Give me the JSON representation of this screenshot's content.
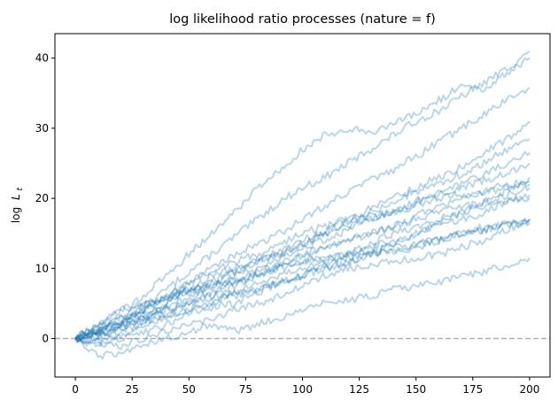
{
  "chart_data": {
    "type": "line",
    "title": "log likelihood ratio processes (nature = f)",
    "xlabel": "",
    "ylabel_main": "log",
    "ylabel_math": "L",
    "ylabel_subscript": "t",
    "xlim": [
      -9,
      209
    ],
    "ylim": [
      -5.5,
      43.5
    ],
    "xticks": [
      0,
      25,
      50,
      75,
      100,
      125,
      150,
      175,
      200
    ],
    "yticks": [
      0,
      10,
      20,
      30,
      40
    ],
    "reference_line": {
      "y": 0,
      "style": "dashed",
      "color": "#b0b0b0"
    },
    "line_color": "#1f77b4",
    "line_alpha": 0.3,
    "series": [
      {
        "name": "path-1",
        "x": [
          0,
          10,
          20,
          30,
          40,
          50,
          60,
          70,
          80,
          90,
          100,
          110,
          120,
          130,
          140,
          150,
          160,
          170,
          180,
          190,
          200
        ],
        "values": [
          0,
          1.2,
          2.5,
          4.5,
          7,
          9.5,
          12,
          14.5,
          17,
          19.5,
          21.5,
          23,
          25,
          27,
          29,
          31,
          32.5,
          34.5,
          36.5,
          38.5,
          41
        ]
      },
      {
        "name": "path-2",
        "x": [
          0,
          10,
          20,
          30,
          40,
          50,
          60,
          70,
          80,
          90,
          100,
          110,
          120,
          130,
          140,
          150,
          160,
          170,
          180,
          190,
          200
        ],
        "values": [
          0,
          2,
          4,
          6,
          9,
          12,
          15,
          18,
          21.5,
          24,
          27,
          29,
          30,
          29.5,
          30.5,
          32,
          34,
          36,
          35.5,
          38,
          40
        ]
      },
      {
        "name": "path-3",
        "x": [
          0,
          10,
          20,
          30,
          40,
          50,
          60,
          70,
          80,
          90,
          100,
          110,
          120,
          130,
          140,
          150,
          160,
          170,
          180,
          190,
          200
        ],
        "values": [
          0,
          1,
          2,
          4,
          6,
          8,
          10,
          12,
          13.5,
          15,
          17,
          19,
          21,
          22.5,
          24,
          26,
          28,
          30,
          32,
          34,
          35.8
        ]
      },
      {
        "name": "path-4",
        "x": [
          0,
          10,
          20,
          30,
          40,
          50,
          60,
          70,
          80,
          90,
          100,
          110,
          120,
          130,
          140,
          150,
          160,
          170,
          180,
          190,
          200
        ],
        "values": [
          0,
          0.8,
          2,
          3.5,
          5,
          6.5,
          8,
          9.5,
          11,
          12.5,
          14,
          15.5,
          17,
          18.5,
          20,
          21.5,
          23,
          24.5,
          26.5,
          28.5,
          31
        ]
      },
      {
        "name": "path-5",
        "x": [
          0,
          10,
          20,
          30,
          40,
          50,
          60,
          70,
          80,
          90,
          100,
          110,
          120,
          130,
          140,
          150,
          160,
          170,
          180,
          190,
          200
        ],
        "values": [
          0,
          1.5,
          3,
          4,
          5.5,
          7,
          8,
          9.5,
          11,
          12,
          13.5,
          15,
          16.5,
          18,
          19.5,
          21,
          22,
          23.5,
          25,
          27,
          28.5
        ]
      },
      {
        "name": "path-6",
        "x": [
          0,
          10,
          20,
          30,
          40,
          50,
          60,
          70,
          80,
          90,
          100,
          110,
          120,
          130,
          140,
          150,
          160,
          170,
          180,
          190,
          200
        ],
        "values": [
          0,
          0.5,
          1.5,
          3,
          4.5,
          6,
          7.5,
          9,
          10,
          11.5,
          13,
          14,
          15.5,
          17,
          18,
          19.5,
          21,
          22,
          23.5,
          25,
          26.5
        ]
      },
      {
        "name": "path-7",
        "x": [
          0,
          10,
          20,
          30,
          40,
          50,
          60,
          70,
          80,
          90,
          100,
          110,
          120,
          130,
          140,
          150,
          160,
          170,
          180,
          190,
          200
        ],
        "values": [
          0,
          1,
          2,
          3,
          5,
          7,
          9,
          10,
          11,
          12,
          13.5,
          15,
          16,
          17,
          18,
          19.5,
          20.5,
          21.5,
          22.5,
          23.5,
          25
        ]
      },
      {
        "name": "path-8",
        "x": [
          0,
          10,
          20,
          30,
          40,
          50,
          60,
          70,
          80,
          90,
          100,
          110,
          120,
          130,
          140,
          150,
          160,
          170,
          180,
          190,
          200
        ],
        "values": [
          0,
          -0.5,
          0.5,
          2,
          3.5,
          5,
          6.5,
          8,
          9,
          10.5,
          12,
          13,
          14,
          15,
          16,
          17.5,
          19,
          20,
          21,
          22,
          22.5
        ]
      },
      {
        "name": "path-9",
        "x": [
          0,
          10,
          20,
          30,
          40,
          50,
          60,
          70,
          80,
          90,
          100,
          110,
          120,
          130,
          140,
          150,
          160,
          170,
          180,
          190,
          200
        ],
        "values": [
          0,
          1,
          2.5,
          4,
          6,
          8,
          9.5,
          11,
          12,
          13.5,
          15,
          16,
          17,
          17.5,
          18,
          19,
          20,
          20.5,
          21,
          21.5,
          22
        ]
      },
      {
        "name": "path-10",
        "x": [
          0,
          10,
          20,
          30,
          40,
          50,
          60,
          70,
          80,
          90,
          100,
          110,
          120,
          130,
          140,
          150,
          160,
          170,
          180,
          190,
          200
        ],
        "values": [
          0,
          0.5,
          1.5,
          2.5,
          4,
          5.5,
          7,
          8.5,
          9.5,
          10.5,
          12,
          13,
          14,
          15,
          16,
          17,
          18,
          19,
          19.5,
          20.5,
          21.5
        ]
      },
      {
        "name": "path-11",
        "x": [
          0,
          10,
          20,
          30,
          40,
          50,
          60,
          70,
          80,
          90,
          100,
          110,
          120,
          130,
          140,
          150,
          160,
          170,
          180,
          190,
          200
        ],
        "values": [
          0,
          0,
          1,
          2,
          3,
          4,
          5,
          6,
          7,
          8,
          9,
          10.5,
          12,
          13.5,
          15,
          16,
          17,
          18,
          19,
          19.5,
          20
        ]
      },
      {
        "name": "path-12",
        "x": [
          0,
          10,
          20,
          30,
          40,
          50,
          60,
          70,
          80,
          90,
          100,
          110,
          120,
          130,
          140,
          150,
          160,
          170,
          180,
          190,
          200
        ],
        "values": [
          0,
          1.5,
          3,
          5,
          6,
          7,
          7.5,
          8,
          9,
          10,
          11,
          11.5,
          12,
          12.5,
          13,
          13.5,
          14,
          15,
          15.5,
          16.5,
          17
        ]
      },
      {
        "name": "path-13",
        "x": [
          0,
          10,
          20,
          30,
          40,
          50,
          60,
          70,
          80,
          90,
          100,
          110,
          120,
          130,
          140,
          150,
          160,
          170,
          180,
          190,
          200
        ],
        "values": [
          0,
          -1,
          0,
          1,
          2,
          3.5,
          5,
          6.5,
          8,
          9,
          10,
          11,
          11.5,
          12,
          12.5,
          13.5,
          14.5,
          15,
          16,
          16.5,
          17
        ]
      },
      {
        "name": "path-14",
        "x": [
          0,
          10,
          20,
          30,
          40,
          50,
          60,
          70,
          80,
          90,
          100,
          110,
          120,
          130,
          140,
          150,
          160,
          170,
          180,
          190,
          200
        ],
        "values": [
          0,
          0.5,
          1.5,
          3,
          4,
          5,
          6,
          6.5,
          7,
          8,
          9,
          10,
          11,
          12,
          12.5,
          13,
          14,
          15,
          15.5,
          16,
          16.5
        ]
      },
      {
        "name": "path-15",
        "x": [
          0,
          10,
          20,
          30,
          40,
          50,
          60,
          70,
          80,
          90,
          100,
          110,
          120,
          130,
          140,
          150,
          160,
          170,
          180,
          190,
          200
        ],
        "values": [
          0,
          -0.5,
          -1,
          0,
          1,
          2,
          3,
          4,
          5,
          6,
          7.5,
          9,
          10,
          10.5,
          11,
          11.5,
          12,
          13,
          14,
          15.5,
          17
        ]
      },
      {
        "name": "path-16",
        "x": [
          0,
          10,
          20,
          30,
          40,
          50,
          60,
          70,
          80,
          90,
          100,
          110,
          120,
          130,
          140,
          150,
          160,
          170,
          180,
          190,
          200
        ],
        "values": [
          0,
          -2.5,
          -2,
          -1,
          0,
          1,
          2,
          1,
          2,
          3,
          4,
          5,
          5.5,
          6,
          7,
          7.5,
          8,
          9,
          9.5,
          10.5,
          11.5
        ]
      },
      {
        "name": "path-17",
        "x": [
          0,
          10,
          20,
          30,
          40,
          50,
          60,
          70,
          80,
          90,
          100,
          110,
          120,
          130,
          140,
          150,
          160,
          170,
          180,
          190,
          200
        ],
        "values": [
          0,
          2,
          4,
          5,
          6,
          7,
          6,
          7.5,
          9,
          10,
          11,
          11.5,
          12,
          13,
          14,
          15,
          16,
          17,
          18,
          19.5,
          20.5
        ]
      },
      {
        "name": "path-18",
        "x": [
          0,
          10,
          20,
          30,
          40,
          50,
          60,
          70,
          80,
          90,
          100,
          110,
          120,
          130,
          140,
          150,
          160,
          170,
          180,
          190,
          200
        ],
        "values": [
          0,
          1,
          2,
          3,
          3.5,
          4,
          4.5,
          5,
          6.5,
          8,
          9,
          10,
          11,
          12,
          13.5,
          15,
          16.5,
          18,
          19.5,
          21,
          23
        ]
      }
    ]
  }
}
